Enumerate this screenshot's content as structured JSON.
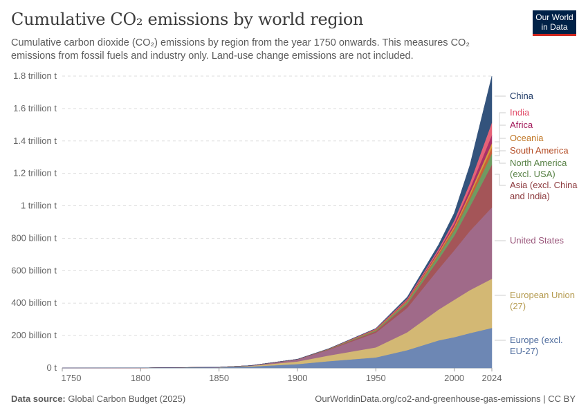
{
  "header": {
    "title": "Cumulative CO₂ emissions by world region",
    "subtitle": "Cumulative carbon dioxide (CO₂) emissions by region from the year 1750 onwards. This measures CO₂ emissions from fossil fuels and industry only. Land-use change emissions are not included.",
    "logo_line1": "Our World",
    "logo_line2": "in Data"
  },
  "footer": {
    "source_label": "Data source:",
    "source": "Global Carbon Budget (2025)",
    "url": "OurWorldinData.org/co2-and-greenhouse-gas-emissions | CC BY"
  },
  "chart_data": {
    "type": "area",
    "stacked": true,
    "title": "Cumulative CO₂ emissions by world region",
    "unit": "t",
    "xlim": [
      1750,
      2024
    ],
    "ylim": [
      0,
      1800000000000
    ],
    "grid": true,
    "legend": "right",
    "x_ticks": [
      1750,
      1800,
      1850,
      1900,
      1950,
      2000,
      2024
    ],
    "y_ticks": [
      {
        "value": 0,
        "label": "0 t"
      },
      {
        "value": 200000000000,
        "label": "200 billion t"
      },
      {
        "value": 400000000000,
        "label": "400 billion t"
      },
      {
        "value": 600000000000,
        "label": "600 billion t"
      },
      {
        "value": 800000000000,
        "label": "800 billion t"
      },
      {
        "value": 1000000000000,
        "label": "1 trillion t"
      },
      {
        "value": 1200000000000,
        "label": "1.2 trillion t"
      },
      {
        "value": 1400000000000,
        "label": "1.4 trillion t"
      },
      {
        "value": 1600000000000,
        "label": "1.6 trillion t"
      },
      {
        "value": 1800000000000,
        "label": "1.8 trillion t"
      }
    ],
    "x": [
      1750,
      1800,
      1850,
      1870,
      1900,
      1920,
      1950,
      1970,
      1990,
      2000,
      2010,
      2024
    ],
    "value_unit": "billion t",
    "series": [
      {
        "name": "Europe (excl. EU-27)",
        "color": "#6d87b4",
        "label_color": "#4c6a9c",
        "values": [
          0,
          0.5,
          3.5,
          9,
          24,
          42,
          65,
          110,
          170,
          190,
          215,
          247
        ]
      },
      {
        "name": "European Union (27)",
        "color": "#d3b874",
        "label_color": "#b59b50",
        "values": [
          0,
          0.1,
          1.2,
          4,
          16,
          35,
          62,
          110,
          190,
          230,
          265,
          303
        ]
      },
      {
        "name": "United States",
        "color": "#a06a89",
        "label_color": "#99557a",
        "values": [
          0,
          0,
          0.3,
          1.5,
          12,
          35,
          90,
          150,
          250,
          305,
          365,
          440
        ]
      },
      {
        "name": "Asia (excl. China and India)",
        "color": "#a45558",
        "label_color": "#8c3a3e",
        "values": [
          0,
          0,
          0,
          0.1,
          1,
          3,
          10,
          25,
          60,
          90,
          150,
          264
        ]
      },
      {
        "name": "North America (excl. USA)",
        "color": "#6f9b62",
        "label_color": "#578145",
        "values": [
          0,
          0,
          0,
          0.1,
          0.5,
          2,
          6,
          12,
          25,
          33,
          45,
          68
        ]
      },
      {
        "name": "South America",
        "color": "#c8613a",
        "label_color": "#b34a22",
        "values": [
          0,
          0,
          0,
          0,
          0.1,
          0.5,
          2,
          5,
          10,
          15,
          23,
          38
        ]
      },
      {
        "name": "Oceania",
        "color": "#d69a3c",
        "label_color": "#c07726",
        "values": [
          0,
          0,
          0,
          0,
          0.2,
          0.5,
          2,
          4,
          8,
          11,
          16,
          26
        ]
      },
      {
        "name": "Africa",
        "color": "#a83068",
        "label_color": "#a2185a",
        "values": [
          0,
          0,
          0,
          0,
          0.1,
          0.5,
          2,
          5,
          10,
          16,
          27,
          51
        ]
      },
      {
        "name": "India",
        "color": "#e56277",
        "label_color": "#e14a67",
        "values": [
          0,
          0,
          0,
          0,
          0.2,
          0.5,
          3,
          6,
          12,
          20,
          35,
          77
        ]
      },
      {
        "name": "China",
        "color": "#33537c",
        "label_color": "#1f3a66",
        "values": [
          0,
          0,
          0,
          0,
          0.1,
          0.5,
          2,
          10,
          25,
          45,
          110,
          286
        ]
      }
    ],
    "legend_labels": [
      [
        "China"
      ],
      [
        "India"
      ],
      [
        "Africa"
      ],
      [
        "Oceania"
      ],
      [
        "South America"
      ],
      [
        "North America",
        "(excl. USA)"
      ],
      [
        "Asia (excl. China",
        "and India)"
      ],
      [
        "United States"
      ],
      [
        "European Union",
        "(27)"
      ],
      [
        "Europe (excl.",
        "EU-27)"
      ]
    ]
  }
}
